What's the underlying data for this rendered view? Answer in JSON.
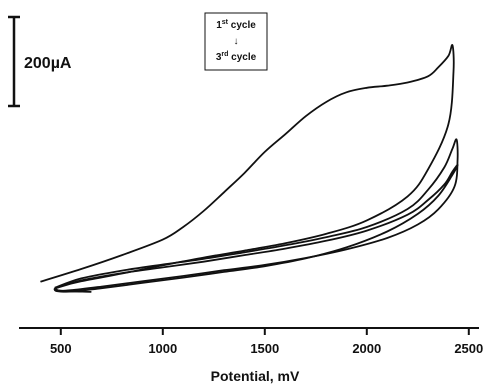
{
  "chart_data": {
    "type": "line",
    "title": "",
    "xlabel": "Potential, mV",
    "ylabel": "",
    "xlim": [
      300,
      2550
    ],
    "ylim": [
      -10,
      720
    ],
    "x_ticks": [
      500,
      1000,
      1500,
      2000,
      2500
    ],
    "y_axis_shown": false,
    "grid": false,
    "scale_bar": {
      "label": "200µA",
      "value": 200,
      "unit": "µA"
    },
    "annotation": {
      "first": {
        "base": "1",
        "sup": "st",
        "text": " cycle"
      },
      "arrow": "↓",
      "last": {
        "base": "3",
        "sup": "rd",
        "text": " cycle"
      }
    },
    "series": [
      {
        "x": [
          400,
          600,
          800,
          1000,
          1100,
          1200,
          1300,
          1400,
          1500,
          1600,
          1700,
          1800,
          1900,
          2000,
          2100,
          2200,
          2300,
          2350,
          2400,
          2420,
          2425,
          2400,
          2300,
          2200,
          2000,
          1800,
          1600,
          1400,
          1200,
          1000,
          800,
          600,
          500,
          470,
          520,
          650
        ],
        "y": [
          30,
          61,
          95,
          133,
          164,
          203,
          249,
          296,
          348,
          391,
          435,
          470,
          494,
          505,
          510,
          518,
          533,
          555,
          583,
          609,
          544,
          416,
          305,
          239,
          180,
          147,
          124,
          106,
          89,
          70,
          50,
          31,
          18,
          11,
          7,
          5
        ]
      },
      {
        "x": [
          470,
          600,
          800,
          1000,
          1200,
          1400,
          1600,
          1800,
          2000,
          2200,
          2300,
          2380,
          2420,
          2440,
          2445,
          2430,
          2350,
          2250,
          2100,
          1900,
          1700,
          1500,
          1300,
          1100,
          900,
          700,
          550,
          490,
          470
        ],
        "y": [
          15,
          38,
          57,
          72,
          86,
          102,
          119,
          139,
          164,
          208,
          255,
          310,
          356,
          378,
          330,
          263,
          207,
          170,
          137,
          109,
          88,
          71,
          58,
          44,
          31,
          18,
          9,
          8,
          15
        ]
      },
      {
        "x": [
          470,
          600,
          800,
          1000,
          1200,
          1400,
          1600,
          1800,
          2000,
          2200,
          2300,
          2380,
          2420,
          2445,
          2420,
          2350,
          2250,
          2100,
          1900,
          1700,
          1500,
          1300,
          1100,
          900,
          700,
          560,
          480,
          470
        ],
        "y": [
          14,
          33,
          51,
          65,
          79,
          95,
          111,
          130,
          155,
          194,
          230,
          268,
          300,
          316,
          292,
          240,
          196,
          153,
          114,
          87,
          68,
          54,
          40,
          27,
          14,
          6,
          7,
          14
        ]
      }
    ]
  }
}
